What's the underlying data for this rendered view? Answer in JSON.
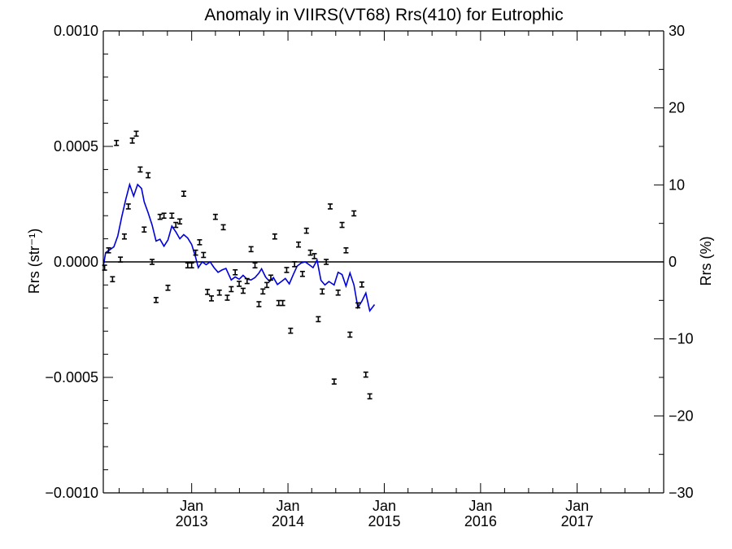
{
  "chart_data": {
    "type": "scatter",
    "title": "Anomaly in VIIRS(VT68) Rrs(410) for Eutrophic",
    "ylabel_left": "Rrs (str⁻¹)",
    "ylabel_right": "Rrs (%)",
    "xlabel": "",
    "ylim_left": [
      -0.001,
      0.001
    ],
    "ylim_right": [
      -30,
      30
    ],
    "xlim": [
      "2012-02-01",
      "2017-11-25"
    ],
    "zero_line": true,
    "y_ticks_left": [
      "0.0010",
      "0.0005",
      "0.0000",
      "−0.0005",
      "−0.0010"
    ],
    "y_tick_values_left": [
      0.001,
      0.0005,
      0.0,
      -0.0005,
      -0.001
    ],
    "y_ticks_right": [
      "30",
      "20",
      "10",
      "0",
      "−10",
      "−20",
      "−30"
    ],
    "y_tick_values_right": [
      30,
      20,
      10,
      0,
      -10,
      -20,
      -30
    ],
    "x_ticks": [
      {
        "date": "2013-01-01",
        "month": "Jan",
        "year": "2013"
      },
      {
        "date": "2014-01-01",
        "month": "Jan",
        "year": "2014"
      },
      {
        "date": "2015-01-01",
        "month": "Jan",
        "year": "2015"
      },
      {
        "date": "2016-01-01",
        "month": "Jan",
        "year": "2016"
      },
      {
        "date": "2017-01-01",
        "month": "Jan",
        "year": "2017"
      }
    ],
    "colors": {
      "points": "#000000",
      "smooth_line": "#0000dd",
      "zero_line": "#000000"
    },
    "points": [
      {
        "x": "2012-02-06",
        "y": -2.5e-05
      },
      {
        "x": "2012-02-21",
        "y": 5e-05
      },
      {
        "x": "2012-03-07",
        "y": -7.5e-05
      },
      {
        "x": "2012-03-22",
        "y": 0.000515
      },
      {
        "x": "2012-04-06",
        "y": 1e-05
      },
      {
        "x": "2012-04-21",
        "y": 0.00011
      },
      {
        "x": "2012-05-06",
        "y": 0.00024
      },
      {
        "x": "2012-05-21",
        "y": 0.000525
      },
      {
        "x": "2012-06-05",
        "y": 0.000555
      },
      {
        "x": "2012-06-20",
        "y": 0.0004
      },
      {
        "x": "2012-07-05",
        "y": 0.00014
      },
      {
        "x": "2012-07-20",
        "y": 0.000375
      },
      {
        "x": "2012-08-04",
        "y": 0.0
      },
      {
        "x": "2012-08-19",
        "y": -0.000165
      },
      {
        "x": "2012-09-03",
        "y": 0.000195
      },
      {
        "x": "2012-09-18",
        "y": 0.0002
      },
      {
        "x": "2012-10-03",
        "y": -0.000112
      },
      {
        "x": "2012-10-18",
        "y": 0.0002
      },
      {
        "x": "2012-11-02",
        "y": 0.00016
      },
      {
        "x": "2012-11-17",
        "y": 0.000175
      },
      {
        "x": "2012-12-02",
        "y": 0.000295
      },
      {
        "x": "2012-12-17",
        "y": -1.5e-05
      },
      {
        "x": "2013-01-01",
        "y": -1.5e-05
      },
      {
        "x": "2013-01-16",
        "y": 4e-05
      },
      {
        "x": "2013-01-31",
        "y": 8.5e-05
      },
      {
        "x": "2013-02-15",
        "y": 3e-05
      },
      {
        "x": "2013-03-02",
        "y": -0.00013
      },
      {
        "x": "2013-03-17",
        "y": -0.000158
      },
      {
        "x": "2013-04-01",
        "y": 0.000195
      },
      {
        "x": "2013-04-16",
        "y": -0.000133
      },
      {
        "x": "2013-05-01",
        "y": 0.00015
      },
      {
        "x": "2013-05-16",
        "y": -0.000155
      },
      {
        "x": "2013-05-31",
        "y": -0.000118
      },
      {
        "x": "2013-06-15",
        "y": -4.5e-05
      },
      {
        "x": "2013-06-30",
        "y": -9.5e-05
      },
      {
        "x": "2013-07-15",
        "y": -0.000125
      },
      {
        "x": "2013-07-30",
        "y": -8.3e-05
      },
      {
        "x": "2013-08-14",
        "y": 5.5e-05
      },
      {
        "x": "2013-08-29",
        "y": -1.5e-05
      },
      {
        "x": "2013-09-13",
        "y": -0.000183
      },
      {
        "x": "2013-09-28",
        "y": -0.000128
      },
      {
        "x": "2013-10-13",
        "y": -0.0001
      },
      {
        "x": "2013-10-28",
        "y": -6.8e-05
      },
      {
        "x": "2013-11-12",
        "y": 0.00011
      },
      {
        "x": "2013-11-27",
        "y": -0.000178
      },
      {
        "x": "2013-12-12",
        "y": -0.000178
      },
      {
        "x": "2013-12-27",
        "y": -3.5e-05
      },
      {
        "x": "2014-01-11",
        "y": -0.000298
      },
      {
        "x": "2014-01-26",
        "y": -1e-05
      },
      {
        "x": "2014-02-10",
        "y": 7.5e-05
      },
      {
        "x": "2014-02-25",
        "y": -5.2e-05
      },
      {
        "x": "2014-03-12",
        "y": 0.000135
      },
      {
        "x": "2014-03-27",
        "y": 4e-05
      },
      {
        "x": "2014-04-11",
        "y": 2.5e-05
      },
      {
        "x": "2014-04-26",
        "y": -0.000248
      },
      {
        "x": "2014-05-11",
        "y": -0.000128
      },
      {
        "x": "2014-05-26",
        "y": 0.0
      },
      {
        "x": "2014-06-10",
        "y": 0.00024
      },
      {
        "x": "2014-06-25",
        "y": -0.000518
      },
      {
        "x": "2014-07-10",
        "y": -0.000133
      },
      {
        "x": "2014-07-25",
        "y": 0.00016
      },
      {
        "x": "2014-08-09",
        "y": 5e-05
      },
      {
        "x": "2014-08-24",
        "y": -0.000315
      },
      {
        "x": "2014-09-08",
        "y": 0.00021
      },
      {
        "x": "2014-09-23",
        "y": -0.000188
      },
      {
        "x": "2014-10-08",
        "y": -9.8e-05
      },
      {
        "x": "2014-10-23",
        "y": -0.000488
      },
      {
        "x": "2014-11-07",
        "y": -0.000582
      }
    ],
    "smooth_line": [
      {
        "x": "2012-02-01",
        "y": -2e-05
      },
      {
        "x": "2012-02-10",
        "y": 4e-05
      },
      {
        "x": "2012-02-25",
        "y": 5.2e-05
      },
      {
        "x": "2012-03-12",
        "y": 6.5e-05
      },
      {
        "x": "2012-03-27",
        "y": 0.000112
      },
      {
        "x": "2012-04-11",
        "y": 0.000195
      },
      {
        "x": "2012-04-26",
        "y": 0.00027
      },
      {
        "x": "2012-05-11",
        "y": 0.000335
      },
      {
        "x": "2012-05-26",
        "y": 0.000285
      },
      {
        "x": "2012-06-10",
        "y": 0.000335
      },
      {
        "x": "2012-06-25",
        "y": 0.000318
      },
      {
        "x": "2012-07-05",
        "y": 0.00026
      },
      {
        "x": "2012-07-20",
        "y": 0.000213
      },
      {
        "x": "2012-08-04",
        "y": 0.00016
      },
      {
        "x": "2012-08-19",
        "y": 9e-05
      },
      {
        "x": "2012-09-03",
        "y": 9.8e-05
      },
      {
        "x": "2012-09-18",
        "y": 6.8e-05
      },
      {
        "x": "2012-10-03",
        "y": 9.5e-05
      },
      {
        "x": "2012-10-18",
        "y": 0.000155
      },
      {
        "x": "2012-11-02",
        "y": 0.00013
      },
      {
        "x": "2012-11-17",
        "y": 0.0001
      },
      {
        "x": "2012-12-02",
        "y": 0.000118
      },
      {
        "x": "2012-12-17",
        "y": 0.000103
      },
      {
        "x": "2013-01-01",
        "y": 7.5e-05
      },
      {
        "x": "2013-01-16",
        "y": 2e-05
      },
      {
        "x": "2013-01-26",
        "y": -2.5e-05
      },
      {
        "x": "2013-02-10",
        "y": 0.0
      },
      {
        "x": "2013-02-25",
        "y": -1.2e-05
      },
      {
        "x": "2013-03-12",
        "y": 0.0
      },
      {
        "x": "2013-03-27",
        "y": -2.5e-05
      },
      {
        "x": "2013-04-11",
        "y": -4.5e-05
      },
      {
        "x": "2013-04-26",
        "y": -3.5e-05
      },
      {
        "x": "2013-05-11",
        "y": -2.8e-05
      },
      {
        "x": "2013-05-31",
        "y": -7.8e-05
      },
      {
        "x": "2013-06-15",
        "y": -6.5e-05
      },
      {
        "x": "2013-06-30",
        "y": -7.5e-05
      },
      {
        "x": "2013-07-15",
        "y": -5.8e-05
      },
      {
        "x": "2013-07-30",
        "y": -7.5e-05
      },
      {
        "x": "2013-08-14",
        "y": -7.8e-05
      },
      {
        "x": "2013-08-29",
        "y": -6.8e-05
      },
      {
        "x": "2013-09-13",
        "y": -4.8e-05
      },
      {
        "x": "2013-09-23",
        "y": -3e-05
      },
      {
        "x": "2013-10-08",
        "y": -6.5e-05
      },
      {
        "x": "2013-10-23",
        "y": -8.5e-05
      },
      {
        "x": "2013-11-07",
        "y": -6.8e-05
      },
      {
        "x": "2013-11-22",
        "y": -9.8e-05
      },
      {
        "x": "2013-12-07",
        "y": -8.5e-05
      },
      {
        "x": "2013-12-22",
        "y": -7.2e-05
      },
      {
        "x": "2014-01-06",
        "y": -9.5e-05
      },
      {
        "x": "2014-01-21",
        "y": -5.5e-05
      },
      {
        "x": "2014-02-05",
        "y": -1.8e-05
      },
      {
        "x": "2014-02-20",
        "y": -5e-06
      },
      {
        "x": "2014-03-07",
        "y": 0.0
      },
      {
        "x": "2014-03-22",
        "y": -1.2e-05
      },
      {
        "x": "2014-04-06",
        "y": -2.5e-05
      },
      {
        "x": "2014-04-21",
        "y": 8e-06
      },
      {
        "x": "2014-05-06",
        "y": -8e-05
      },
      {
        "x": "2014-05-21",
        "y": -0.0001
      },
      {
        "x": "2014-06-05",
        "y": -8.5e-05
      },
      {
        "x": "2014-06-25",
        "y": -0.0001
      },
      {
        "x": "2014-07-10",
        "y": -4.5e-05
      },
      {
        "x": "2014-07-25",
        "y": -5.5e-05
      },
      {
        "x": "2014-08-09",
        "y": -0.000105
      },
      {
        "x": "2014-08-24",
        "y": -4.8e-05
      },
      {
        "x": "2014-09-08",
        "y": -0.0001
      },
      {
        "x": "2014-09-23",
        "y": -0.000198
      },
      {
        "x": "2014-10-08",
        "y": -0.00017
      },
      {
        "x": "2014-10-23",
        "y": -0.000135
      },
      {
        "x": "2014-11-07",
        "y": -0.000212
      },
      {
        "x": "2014-11-25",
        "y": -0.000185
      }
    ]
  }
}
